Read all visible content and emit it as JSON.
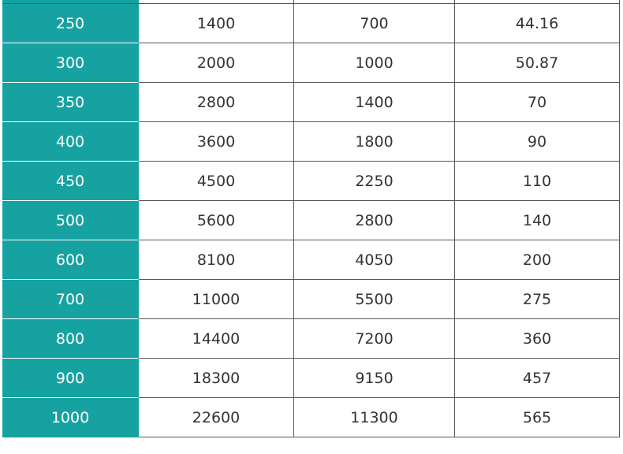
{
  "table": {
    "rows": [
      [
        250,
        1400,
        700,
        44.16
      ],
      [
        300,
        2000,
        1000,
        50.87
      ],
      [
        350,
        2800,
        1400,
        70
      ],
      [
        400,
        3600,
        1800,
        90
      ],
      [
        450,
        4500,
        2250,
        110
      ],
      [
        500,
        5600,
        2800,
        140
      ],
      [
        600,
        8100,
        4050,
        200
      ],
      [
        700,
        11000,
        5500,
        275
      ],
      [
        800,
        14400,
        7200,
        360
      ],
      [
        900,
        18300,
        9150,
        457
      ],
      [
        1000,
        22600,
        11300,
        565
      ]
    ]
  }
}
